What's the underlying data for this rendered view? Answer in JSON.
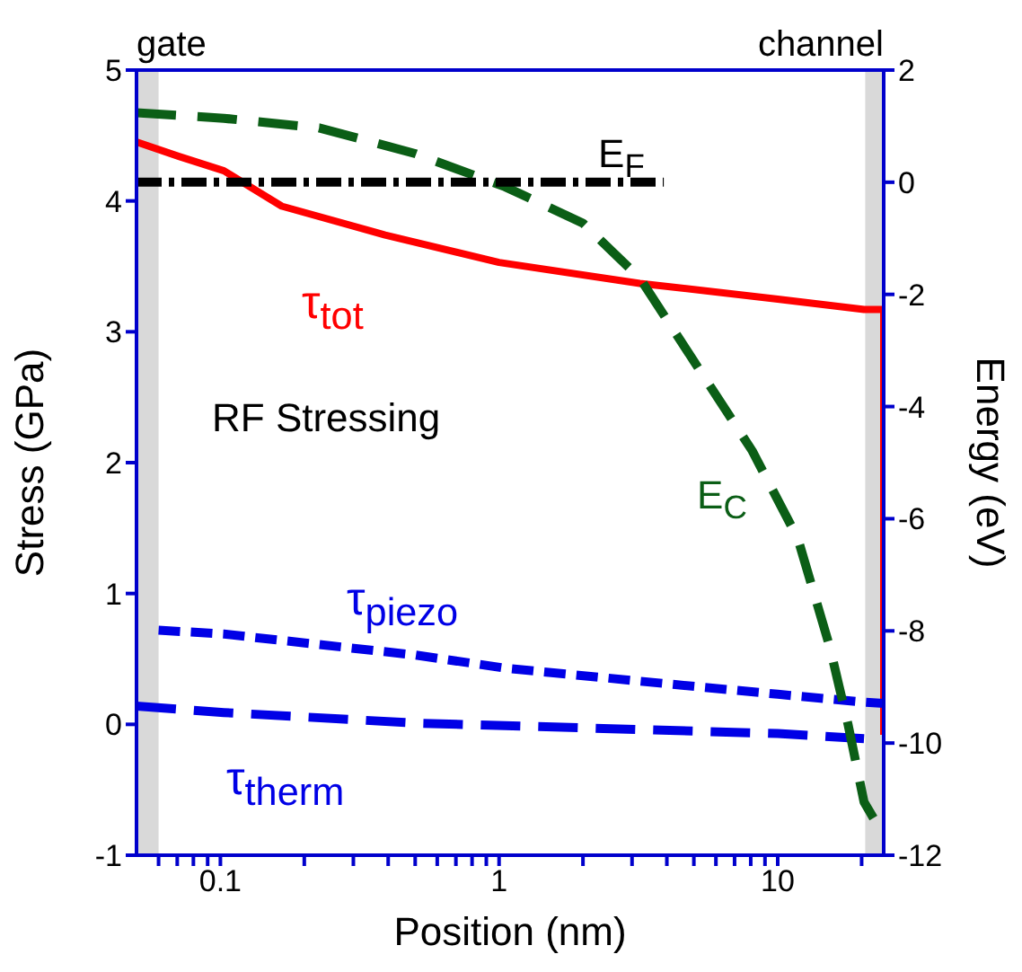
{
  "chart_data": {
    "type": "line",
    "xlabel": "Position (nm)",
    "ylabel": "Stress (GPa)",
    "y2label": "Energy (eV)",
    "log": "x",
    "marker": "none",
    "xlim": [
      0.05,
      24
    ],
    "xticks": [
      {
        "value": 0.06,
        "label": null
      },
      {
        "value": 0.07,
        "label": null
      },
      {
        "value": 0.08,
        "label": null
      },
      {
        "value": 0.09,
        "label": null
      },
      0.1,
      {
        "value": 0.2,
        "label": null
      },
      {
        "value": 0.3,
        "label": null
      },
      {
        "value": 0.4,
        "label": null
      },
      {
        "value": 0.5,
        "label": null
      },
      {
        "value": 0.6,
        "label": null
      },
      {
        "value": 0.7,
        "label": null
      },
      {
        "value": 0.8,
        "label": null
      },
      {
        "value": 0.9,
        "label": null
      },
      1,
      {
        "value": 2,
        "label": null
      },
      {
        "value": 3,
        "label": null
      },
      {
        "value": 4,
        "label": null
      },
      {
        "value": 5,
        "label": null
      },
      {
        "value": 6,
        "label": null
      },
      {
        "value": 7,
        "label": null
      },
      {
        "value": 8,
        "label": null
      },
      {
        "value": 9,
        "label": null
      },
      10,
      {
        "value": 20,
        "label": null
      }
    ],
    "ylim": [
      -1,
      5
    ],
    "yticks": [
      -1,
      0,
      1,
      2,
      3,
      4,
      5
    ],
    "y2lim": [
      -12,
      2
    ],
    "y2ticks": [
      -12,
      -10,
      -8,
      -6,
      -4,
      -2,
      0,
      2
    ],
    "series": [
      {
        "name": "τ$_{tot}$",
        "color": "#ff0000",
        "line_style": "solid",
        "x": [
          0.05,
          0.071,
          0.103,
          0.166,
          0.39,
          1,
          3.2,
          10,
          20.4,
          24,
          24
        ],
        "values": [
          4.45,
          4.34,
          4.23,
          3.96,
          3.74,
          3.53,
          3.37,
          3.25,
          3.17,
          3.17,
          -0.08
        ]
      },
      {
        "name": "τ$_{piezo}$",
        "color": "#0000e6",
        "line_style": "dashed",
        "x": [
          0.06,
          0.103,
          0.226,
          0.5,
          1.05,
          3.2,
          10,
          20.4,
          24
        ],
        "values": [
          0.72,
          0.69,
          0.61,
          0.53,
          0.43,
          0.33,
          0.23,
          0.17,
          0.16
        ]
      },
      {
        "name": "τ$_{therm}$",
        "color": "#0000e6",
        "line_style": "dashed",
        "x": [
          0.05,
          0.103,
          0.5,
          1.05,
          10,
          20.4
        ],
        "values": [
          0.14,
          0.09,
          0.01,
          -0.01,
          -0.07,
          -0.11
        ]
      },
      {
        "name": "E$_{C}$",
        "color": "#0b5e16",
        "line_style": "dashed",
        "axis": "y2",
        "x": [
          0.05,
          0.103,
          0.226,
          0.5,
          1.05,
          2,
          3.2,
          5,
          8.1,
          11.8,
          15.4,
          17.9,
          20.4,
          24
        ],
        "values": [
          1.24,
          1.14,
          0.97,
          0.51,
          -0.08,
          -0.73,
          -1.71,
          -3.19,
          -4.79,
          -6.35,
          -8.3,
          -9.68,
          -11.05,
          -11.65
        ]
      },
      {
        "name": "E$_{F}$",
        "color": "#000000",
        "line_style": "dashed",
        "axis": "y2",
        "x": [
          0.05,
          3.9
        ],
        "values": [
          0,
          0
        ]
      }
    ],
    "bands": [
      {
        "axis": "x",
        "from": 0.05,
        "to": 0.06,
        "label": "gate",
        "color": "#d9d9d9"
      },
      {
        "axis": "x",
        "from": 20.6,
        "to": 24,
        "label": "channel",
        "color": "#d9d9d9"
      }
    ],
    "annotations": [
      "RF Stressing"
    ]
  }
}
